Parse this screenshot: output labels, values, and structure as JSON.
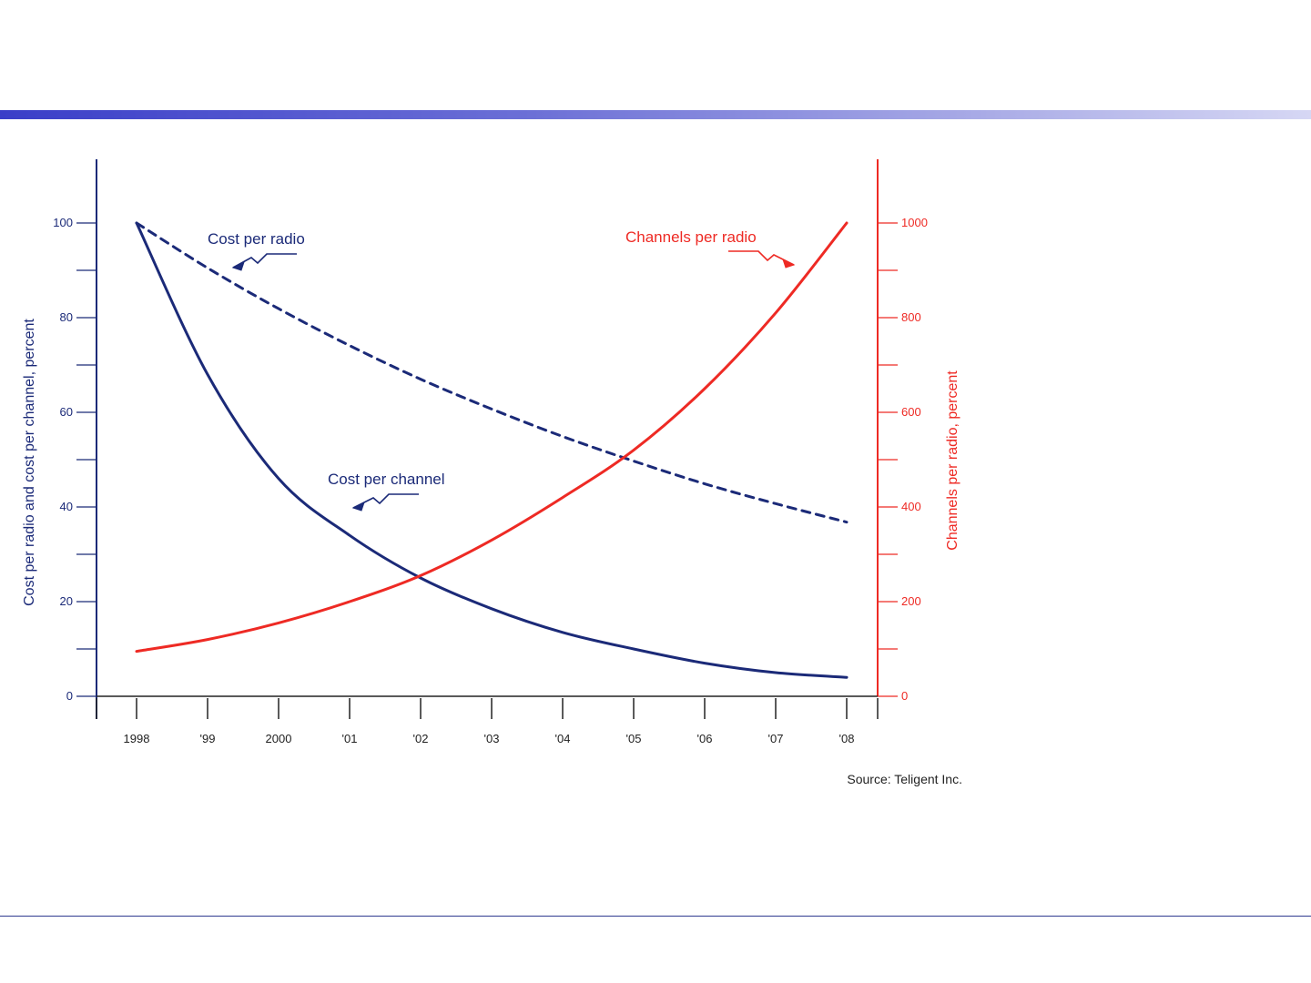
{
  "chart_data": {
    "type": "line",
    "x": [
      "1998",
      "'99",
      "2000",
      "'01",
      "'02",
      "'03",
      "'04",
      "'05",
      "'06",
      "'07",
      "'08"
    ],
    "axes": {
      "left": {
        "title": "Cost per radio and cost per channel, percent",
        "ticks": [
          0,
          20,
          40,
          60,
          80,
          100
        ],
        "ylim": [
          0,
          110
        ],
        "color": "#1b2a78"
      },
      "right": {
        "title": "Channels per radio, percent",
        "ticks": [
          0,
          200,
          400,
          600,
          800,
          1000
        ],
        "ylim": [
          0,
          1100
        ],
        "color": "#ee2a24"
      }
    },
    "series": [
      {
        "name": "Cost per radio",
        "axis": "left",
        "style": "dashed",
        "color": "#1b2a78",
        "values": [
          100,
          90.5,
          81.9,
          74.1,
          67.0,
          60.7,
          54.9,
          49.7,
          44.9,
          40.7,
          36.8
        ]
      },
      {
        "name": "Cost per channel",
        "axis": "left",
        "style": "solid",
        "color": "#1b2a78",
        "values": [
          100,
          68,
          46,
          34,
          25,
          18.5,
          13.5,
          10,
          7,
          5,
          4
        ]
      },
      {
        "name": "Channels per radio",
        "axis": "right",
        "style": "solid",
        "color": "#ee2a24",
        "values": [
          95,
          120,
          155,
          200,
          255,
          330,
          420,
          520,
          650,
          810,
          1000
        ]
      }
    ],
    "grid": false,
    "source": "Source: Teligent Inc."
  }
}
